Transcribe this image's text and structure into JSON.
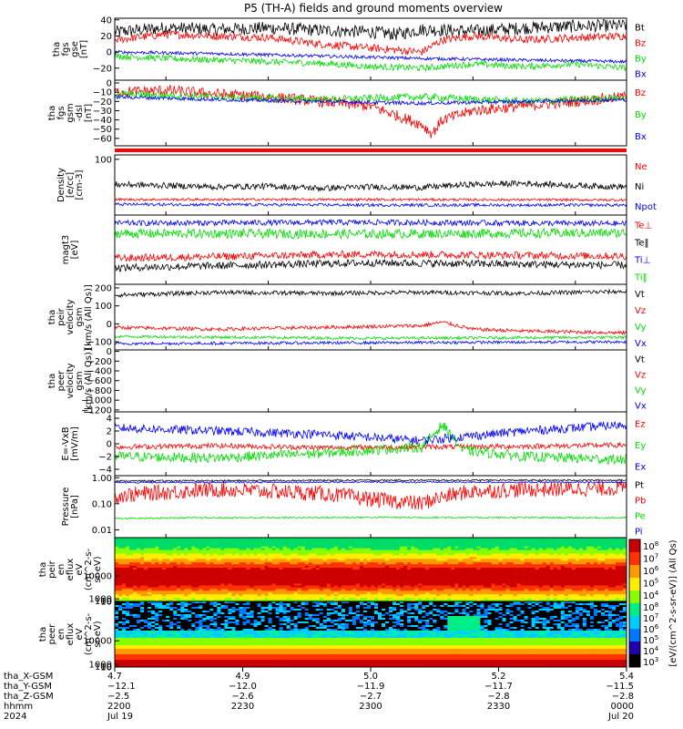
{
  "title": "P5 (TH-A) fields and ground moments overview",
  "colors": {
    "black": "#000000",
    "red": "#ff0000",
    "green": "#00dd00",
    "blue": "#0000ff"
  },
  "chart_data": [
    {
      "id": "fgs-gse",
      "type": "line",
      "ylabel": [
        "tha",
        "fgs",
        "gse",
        "[nT]"
      ],
      "ylim": [
        -35,
        42
      ],
      "yticks": [
        -20,
        0,
        20,
        40
      ],
      "ytick_labels": [
        "−20",
        "0",
        "20",
        "40"
      ],
      "series": [
        {
          "name": "Bt",
          "color": "#000000",
          "x": [
            0,
            0.1,
            0.2,
            0.3,
            0.4,
            0.5,
            0.55,
            0.6,
            0.7,
            0.8,
            0.9,
            1
          ],
          "values": [
            25,
            30,
            28,
            30,
            27,
            25,
            22,
            28,
            26,
            30,
            32,
            33
          ],
          "noise": 8
        },
        {
          "name": "Bz",
          "color": "#ff0000",
          "x": [
            0,
            0.1,
            0.2,
            0.3,
            0.4,
            0.5,
            0.6,
            0.64,
            0.7,
            0.8,
            0.9,
            1
          ],
          "values": [
            15,
            22,
            20,
            18,
            10,
            5,
            0,
            15,
            20,
            15,
            18,
            20
          ],
          "noise": 5
        },
        {
          "name": "By",
          "color": "#00dd00",
          "x": [
            0,
            0.1,
            0.2,
            0.3,
            0.4,
            0.5,
            0.6,
            0.7,
            0.8,
            0.9,
            1
          ],
          "values": [
            -5,
            -8,
            -10,
            -12,
            -14,
            -18,
            -20,
            -15,
            -18,
            -15,
            -20
          ],
          "noise": 4
        },
        {
          "name": "Bx",
          "color": "#0000ff",
          "x": [
            0,
            0.2,
            0.4,
            0.6,
            0.8,
            1
          ],
          "values": [
            0,
            -2,
            -5,
            -8,
            -10,
            -12
          ],
          "noise": 2
        }
      ]
    },
    {
      "id": "fgs-gsm",
      "type": "line",
      "ylabel": [
        "tha",
        "fgs",
        "gsm",
        "-dsl",
        "[nT]"
      ],
      "ylim": [
        -68,
        3
      ],
      "yticks": [
        -60,
        -50,
        -40,
        -30,
        -20,
        -10,
        0
      ],
      "ytick_labels": [
        "−60",
        "−50",
        "−40",
        "−30",
        "−20",
        "−10",
        "0"
      ],
      "series": [
        {
          "name": "Bz",
          "color": "#ff0000",
          "x": [
            0,
            0.1,
            0.2,
            0.3,
            0.4,
            0.5,
            0.55,
            0.6,
            0.62,
            0.64,
            0.7,
            0.8,
            0.9,
            1
          ],
          "values": [
            -10,
            -8,
            -12,
            -15,
            -20,
            -25,
            -35,
            -45,
            -55,
            -40,
            -30,
            -25,
            -20,
            -15
          ],
          "noise": 6
        },
        {
          "name": "By",
          "color": "#00dd00",
          "x": [
            0,
            0.2,
            0.4,
            0.6,
            0.8,
            1
          ],
          "values": [
            -12,
            -15,
            -18,
            -15,
            -20,
            -16
          ],
          "noise": 4
        },
        {
          "name": "Bx",
          "color": "#0000ff",
          "x": [
            0,
            0.2,
            0.4,
            0.6,
            0.8,
            1
          ],
          "values": [
            -15,
            -18,
            -20,
            -22,
            -20,
            -18
          ],
          "noise": 2
        }
      ]
    },
    {
      "id": "density",
      "type": "line",
      "ylog": true,
      "ylabel": [
        "Density",
        "[e/cc]",
        "[cm-3]"
      ],
      "ylim": [
        0.6,
        150
      ],
      "yticks": [
        100
      ],
      "ytick_labels": [
        "100"
      ],
      "series": [
        {
          "name": "Ne",
          "color": "#ff0000",
          "x": [
            0,
            0.5,
            1
          ],
          "values": [
            2.5,
            2.5,
            2.4
          ],
          "noise": 0.05
        },
        {
          "name": "Ni",
          "color": "#000000",
          "x": [
            0,
            0.1,
            0.2,
            0.3,
            0.4,
            0.5,
            0.6,
            0.7,
            0.8,
            0.9,
            1
          ],
          "values": [
            10,
            9,
            8,
            8.5,
            7,
            8,
            7.5,
            10,
            11,
            9,
            8
          ],
          "noise": 0.12
        },
        {
          "name": "Npot",
          "color": "#0000ff",
          "x": [
            0,
            0.5,
            1
          ],
          "values": [
            1.6,
            1.5,
            1.5
          ],
          "noise": 0.06
        }
      ]
    },
    {
      "id": "temperature",
      "type": "line",
      "ylog": true,
      "ylabel": [
        "magt3",
        "[eV]"
      ],
      "ylim": [
        200,
        1100
      ],
      "yticks": [],
      "ytick_labels": [],
      "series": [
        {
          "name": "Te⊥",
          "color": "#ff0000",
          "x": [
            0,
            0.5,
            1
          ],
          "values": [
            380,
            420,
            400
          ],
          "noise": 0.04
        },
        {
          "name": "Te‖",
          "color": "#000000",
          "x": [
            0,
            0.5,
            1
          ],
          "values": [
            300,
            340,
            320
          ],
          "noise": 0.04
        },
        {
          "name": "Ti⊥",
          "color": "#0000ff",
          "x": [
            0,
            0.5,
            1
          ],
          "values": [
            900,
            920,
            890
          ],
          "noise": 0.03
        },
        {
          "name": "Ti‖",
          "color": "#00dd00",
          "x": [
            0,
            0.5,
            1
          ],
          "values": [
            700,
            690,
            710
          ],
          "noise": 0.05
        }
      ]
    },
    {
      "id": "peir-velocity",
      "type": "line",
      "ylabel": [
        "tha",
        "peir",
        "velocity",
        "gsm",
        "[km/s (All Qs)]"
      ],
      "ylim": [
        -145,
        220
      ],
      "yticks": [
        -100,
        0,
        100,
        200
      ],
      "ytick_labels": [
        "−100",
        "0",
        "100",
        "200"
      ],
      "series": [
        {
          "name": "Vt",
          "color": "#000000",
          "x": [
            0,
            0.2,
            0.4,
            0.6,
            0.8,
            1
          ],
          "values": [
            160,
            175,
            170,
            175,
            170,
            180
          ],
          "noise": 12
        },
        {
          "name": "Vz",
          "color": "#ff0000",
          "x": [
            0,
            0.2,
            0.4,
            0.6,
            0.64,
            0.7,
            0.8,
            1
          ],
          "values": [
            -20,
            -30,
            -20,
            -10,
            10,
            -30,
            -40,
            -50
          ],
          "noise": 10
        },
        {
          "name": "Vy",
          "color": "#00dd00",
          "x": [
            0,
            0.5,
            1
          ],
          "values": [
            -70,
            -80,
            -75
          ],
          "noise": 8
        },
        {
          "name": "Vx",
          "color": "#0000ff",
          "x": [
            0,
            0.5,
            1
          ],
          "values": [
            -110,
            -105,
            -100
          ],
          "noise": 8
        }
      ]
    },
    {
      "id": "peer-velocity",
      "type": "line",
      "ylabel": [
        "tha",
        "peer",
        "velocity",
        "gsm",
        "[km/s (All Qs)]"
      ],
      "ylim": [
        -1240,
        30
      ],
      "yticks": [
        -1200,
        -1000,
        -800,
        -600,
        -400,
        -200,
        0
      ],
      "ytick_labels": [
        "−1200",
        "−1000",
        "−800",
        "−600",
        "−400",
        "−200",
        "0"
      ],
      "series": [
        {
          "name": "Vt",
          "color": "#000000",
          "x": [],
          "values": [],
          "noise": 0
        },
        {
          "name": "Vz",
          "color": "#ff0000",
          "x": [],
          "values": [],
          "noise": 0
        },
        {
          "name": "Vy",
          "color": "#00dd00",
          "x": [],
          "values": [],
          "noise": 0
        },
        {
          "name": "Vx",
          "color": "#0000ff",
          "x": [],
          "values": [],
          "noise": 0
        }
      ]
    },
    {
      "id": "efield",
      "type": "line",
      "ylabel": [
        "E=-VxB",
        "[mV/m]"
      ],
      "ylim": [
        -5,
        5
      ],
      "yticks": [
        -4,
        -2,
        0,
        2,
        4
      ],
      "ytick_labels": [
        "−4",
        "−2",
        "0",
        "2",
        "4"
      ],
      "series": [
        {
          "name": "Ez",
          "color": "#ff0000",
          "x": [
            0,
            0.2,
            0.4,
            0.6,
            0.8,
            1
          ],
          "values": [
            -0.5,
            -0.3,
            -0.6,
            -0.5,
            -0.4,
            -0.2
          ],
          "noise": 0.4
        },
        {
          "name": "Ey",
          "color": "#00dd00",
          "x": [
            0,
            0.2,
            0.4,
            0.6,
            0.64,
            0.68,
            0.8,
            1
          ],
          "values": [
            -2,
            -2.2,
            -1.5,
            -0.5,
            3,
            -1,
            -2,
            -2.5
          ],
          "noise": 0.8
        },
        {
          "name": "Ex",
          "color": "#0000ff",
          "x": [
            0,
            0.2,
            0.4,
            0.6,
            0.8,
            1
          ],
          "values": [
            2.5,
            2,
            1.5,
            0.5,
            2,
            3
          ],
          "noise": 0.7
        }
      ]
    },
    {
      "id": "pressure",
      "type": "line",
      "ylog": true,
      "ylabel": [
        "Pressure",
        "[nPa]"
      ],
      "ylim": [
        0.005,
        1.2
      ],
      "yticks": [
        0.01,
        0.1,
        1
      ],
      "ytick_labels": [
        "0.01",
        "0.10",
        "1.00"
      ],
      "series": [
        {
          "name": "Pt",
          "color": "#000000",
          "x": [
            0,
            0.5,
            1
          ],
          "values": [
            0.75,
            0.8,
            0.8
          ],
          "noise": 0.03
        },
        {
          "name": "Pb",
          "color": "#ff0000",
          "x": [
            0,
            0.2,
            0.4,
            0.5,
            0.6,
            0.7,
            0.8,
            1
          ],
          "values": [
            0.2,
            0.35,
            0.25,
            0.15,
            0.1,
            0.3,
            0.35,
            0.4
          ],
          "noise": 0.3
        },
        {
          "name": "Pe",
          "color": "#00dd00",
          "x": [
            0,
            0.5,
            1
          ],
          "values": [
            0.028,
            0.03,
            0.029
          ],
          "noise": 0.03
        },
        {
          "name": "Pi",
          "color": "#0000ff",
          "x": [
            0,
            0.5,
            1
          ],
          "values": [
            0.65,
            0.68,
            0.66
          ],
          "noise": 0.03
        }
      ]
    },
    {
      "id": "peir-eflux",
      "type": "heatmap",
      "ylabel": [
        "tha",
        "peir",
        "en",
        "eflux",
        "eV",
        "(cm^2-s-",
        "sr-eV)"
      ],
      "ylim": [
        8,
        25000
      ],
      "yticks": [
        10,
        100,
        1000,
        10000
      ],
      "ytick_labels": [
        "10",
        "100",
        "1000",
        "10000"
      ]
    },
    {
      "id": "peer-eflux",
      "type": "heatmap",
      "ylabel": [
        "tha",
        "peer",
        "en",
        "eflux",
        "eV",
        "(cm^2-s-",
        "sr-eV)"
      ],
      "ylim": [
        8,
        25000
      ],
      "yticks": [
        10,
        100,
        1000,
        10000
      ],
      "ytick_labels": [
        "10",
        "100",
        "1000",
        "10000"
      ]
    }
  ],
  "colorbar": {
    "label": "[eV/(cm^2-s-sr-eV)] (All Qs)",
    "upper_ticks": [
      "10^4",
      "10^5",
      "10^6",
      "10^7",
      "10^8"
    ],
    "lower_ticks": [
      "10^3",
      "10^4",
      "10^5",
      "10^6",
      "10^7",
      "10^8"
    ]
  },
  "xaxis": {
    "ticks": [
      "0",
      "0.25",
      "0.5",
      "0.75",
      "1"
    ],
    "rows": [
      {
        "label": "tha_X-GSM",
        "values": [
          "4.7",
          "4.9",
          "5.0",
          "5.2",
          "5.4"
        ]
      },
      {
        "label": "tha_Y-GSM",
        "values": [
          "−12.1",
          "−12.0",
          "−11.9",
          "−11.7",
          "−11.5"
        ]
      },
      {
        "label": "tha_Z-GSM",
        "values": [
          "−2.5",
          "−2.6",
          "−2.7",
          "−2.8",
          "−2.8"
        ]
      },
      {
        "label": "hhmm",
        "values": [
          "2200",
          "2230",
          "2300",
          "2330",
          "0000"
        ]
      },
      {
        "label": "2024",
        "values": [
          "Jul 19",
          "",
          "",
          "",
          "Jul 20"
        ]
      }
    ]
  }
}
